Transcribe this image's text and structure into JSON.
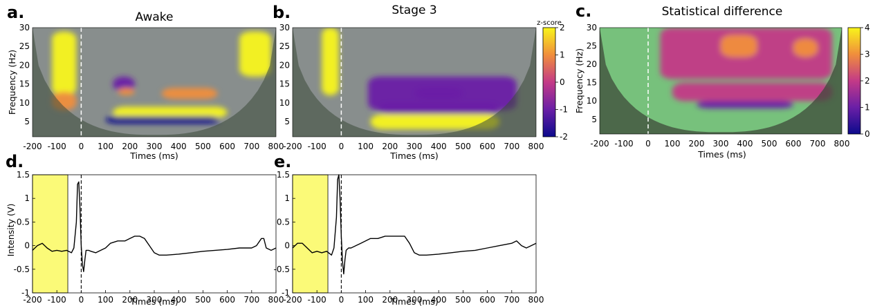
{
  "colors": {
    "hot": "#f7f20f",
    "warm": "#f2a23a",
    "magenta": "#c81f9d",
    "deep": "#2a1a78",
    "gray_overlay": "#8b8a97",
    "mask_dark": "#3d4a3a",
    "stat_bg": "#77c17c",
    "baseline_fill": "#fbfa78",
    "trace": "#000000"
  },
  "chart_data": [
    {
      "id": "a",
      "letter": "a.",
      "type": "heatmap",
      "title": "Awake",
      "xlabel": "Times (ms)",
      "ylabel": "Frequency (Hz)",
      "xlim": [
        -200,
        800
      ],
      "ylim": [
        1,
        30
      ],
      "xticks": [
        -200,
        -100,
        0,
        100,
        200,
        300,
        400,
        500,
        600,
        700,
        800
      ],
      "yticks": [
        5,
        10,
        15,
        20,
        25,
        30
      ],
      "stimulus_time": 0,
      "blobs": [
        {
          "x": [
            -120,
            -20
          ],
          "y": [
            12,
            29
          ],
          "z": 2.0
        },
        {
          "x": [
            -120,
            -20
          ],
          "y": [
            8,
            13
          ],
          "z": 1.2
        },
        {
          "x": [
            130,
            220
          ],
          "y": [
            13,
            17
          ],
          "z": -1.0
        },
        {
          "x": [
            150,
            220
          ],
          "y": [
            12,
            14
          ],
          "z": 1.2
        },
        {
          "x": [
            330,
            560
          ],
          "y": [
            11,
            14
          ],
          "z": 0.6
        },
        {
          "x": [
            130,
            600
          ],
          "y": [
            6,
            9
          ],
          "z": 2.0
        },
        {
          "x": [
            100,
            570
          ],
          "y": [
            4.5,
            6.5
          ],
          "z": -2.0
        },
        {
          "x": [
            650,
            780
          ],
          "y": [
            17,
            29
          ],
          "z": 2.0
        }
      ]
    },
    {
      "id": "b",
      "letter": "b.",
      "type": "heatmap",
      "title": "Stage 3",
      "xlabel": "Times (ms)",
      "ylabel": "",
      "xlim": [
        -200,
        800
      ],
      "ylim": [
        1,
        30
      ],
      "xticks": [
        -200,
        -100,
        0,
        100,
        200,
        300,
        400,
        500,
        600,
        700,
        800
      ],
      "yticks": [
        5,
        10,
        15,
        20,
        25,
        30
      ],
      "stimulus_time": 0,
      "colorbar": {
        "label": "z-score",
        "ticks": [
          -2,
          -1,
          0,
          1,
          2
        ],
        "range": [
          -2,
          2
        ]
      },
      "blobs": [
        {
          "x": [
            -80,
            -10
          ],
          "y": [
            12,
            30
          ],
          "z": 2.0
        },
        {
          "x": [
            110,
            720
          ],
          "y": [
            8,
            17
          ],
          "z": -0.6
        },
        {
          "x": [
            150,
            650
          ],
          "y": [
            7,
            10
          ],
          "z": -1.4
        },
        {
          "x": [
            120,
            650
          ],
          "y": [
            3,
            7
          ],
          "z": 2.0
        },
        {
          "x": [
            300,
            500
          ],
          "y": [
            11,
            14
          ],
          "z": -1.0
        }
      ]
    },
    {
      "id": "c",
      "letter": "c.",
      "type": "heatmap",
      "title": "Statistical difference",
      "xlabel": "Times (ms)",
      "ylabel": "Frequency (Hz)",
      "xlim": [
        -200,
        800
      ],
      "ylim": [
        1,
        30
      ],
      "xticks": [
        -200,
        -100,
        0,
        100,
        200,
        300,
        400,
        500,
        600,
        700,
        800
      ],
      "yticks": [
        5,
        10,
        15,
        20,
        25,
        30
      ],
      "stimulus_time": 0,
      "colorbar": {
        "label": "",
        "ticks": [
          0,
          1,
          2,
          3,
          4
        ],
        "range": [
          0,
          4
        ]
      },
      "blobs": [
        {
          "x": [
            50,
            760
          ],
          "y": [
            16,
            30
          ],
          "z": 2.2
        },
        {
          "x": [
            100,
            760
          ],
          "y": [
            10,
            15
          ],
          "z": 1.6
        },
        {
          "x": [
            200,
            600
          ],
          "y": [
            8,
            10
          ],
          "z": 1.2
        },
        {
          "x": [
            300,
            450
          ],
          "y": [
            22,
            28
          ],
          "z": 3.4
        },
        {
          "x": [
            600,
            700
          ],
          "y": [
            22,
            27
          ],
          "z": 3.2
        }
      ]
    },
    {
      "id": "d",
      "letter": "d.",
      "type": "line",
      "xlabel": "Times (ms)",
      "ylabel": "Intensity (V)",
      "xlim": [
        -200,
        800
      ],
      "ylim": [
        -1,
        1.5
      ],
      "xticks": [
        -200,
        -100,
        0,
        100,
        200,
        300,
        400,
        500,
        600,
        700,
        800
      ],
      "yticks": [
        -1,
        -0.5,
        0,
        0.5,
        1,
        1.5
      ],
      "baseline": [
        -200,
        -55
      ],
      "stimulus_time": 0,
      "x": [
        -200,
        -180,
        -160,
        -140,
        -120,
        -100,
        -80,
        -60,
        -40,
        -30,
        -20,
        -15,
        -10,
        -5,
        0,
        5,
        10,
        15,
        20,
        30,
        40,
        60,
        80,
        100,
        120,
        150,
        180,
        200,
        220,
        240,
        260,
        280,
        300,
        320,
        350,
        400,
        450,
        500,
        550,
        600,
        650,
        700,
        720,
        740,
        750,
        760,
        780,
        800
      ],
      "y": [
        -0.1,
        0.0,
        0.05,
        -0.05,
        -0.12,
        -0.1,
        -0.12,
        -0.1,
        -0.15,
        -0.05,
        0.5,
        1.3,
        1.35,
        0.8,
        0.0,
        -0.4,
        -0.55,
        -0.3,
        -0.1,
        -0.1,
        -0.12,
        -0.15,
        -0.1,
        -0.05,
        0.05,
        0.1,
        0.1,
        0.15,
        0.2,
        0.2,
        0.15,
        0.0,
        -0.15,
        -0.2,
        -0.2,
        -0.18,
        -0.15,
        -0.12,
        -0.1,
        -0.08,
        -0.05,
        -0.05,
        0.0,
        0.15,
        0.15,
        -0.05,
        -0.1,
        -0.05
      ]
    },
    {
      "id": "e",
      "letter": "e.",
      "type": "line",
      "xlabel": "Times (ms)",
      "ylabel": "",
      "xlim": [
        -200,
        800
      ],
      "ylim": [
        -1,
        1.5
      ],
      "xticks": [
        -200,
        -100,
        0,
        100,
        200,
        300,
        400,
        500,
        600,
        700,
        800
      ],
      "yticks": [
        -1,
        -0.5,
        0,
        0.5,
        1,
        1.5
      ],
      "baseline": [
        -200,
        -55
      ],
      "stimulus_time": 0,
      "x": [
        -200,
        -180,
        -160,
        -140,
        -120,
        -100,
        -80,
        -60,
        -40,
        -30,
        -20,
        -15,
        -10,
        -5,
        0,
        5,
        10,
        15,
        20,
        30,
        40,
        60,
        80,
        100,
        120,
        150,
        180,
        200,
        220,
        240,
        260,
        280,
        300,
        320,
        350,
        400,
        450,
        500,
        550,
        600,
        650,
        700,
        720,
        740,
        760,
        780,
        800
      ],
      "y": [
        -0.05,
        0.05,
        0.05,
        -0.05,
        -0.15,
        -0.12,
        -0.15,
        -0.12,
        -0.2,
        -0.05,
        0.6,
        1.4,
        1.5,
        1.0,
        0.2,
        -0.35,
        -0.6,
        -0.3,
        -0.1,
        -0.05,
        -0.05,
        0.0,
        0.05,
        0.1,
        0.15,
        0.15,
        0.2,
        0.2,
        0.2,
        0.2,
        0.2,
        0.05,
        -0.15,
        -0.2,
        -0.2,
        -0.18,
        -0.15,
        -0.12,
        -0.1,
        -0.05,
        0.0,
        0.05,
        0.1,
        0.0,
        -0.05,
        0.0,
        0.05
      ]
    }
  ]
}
